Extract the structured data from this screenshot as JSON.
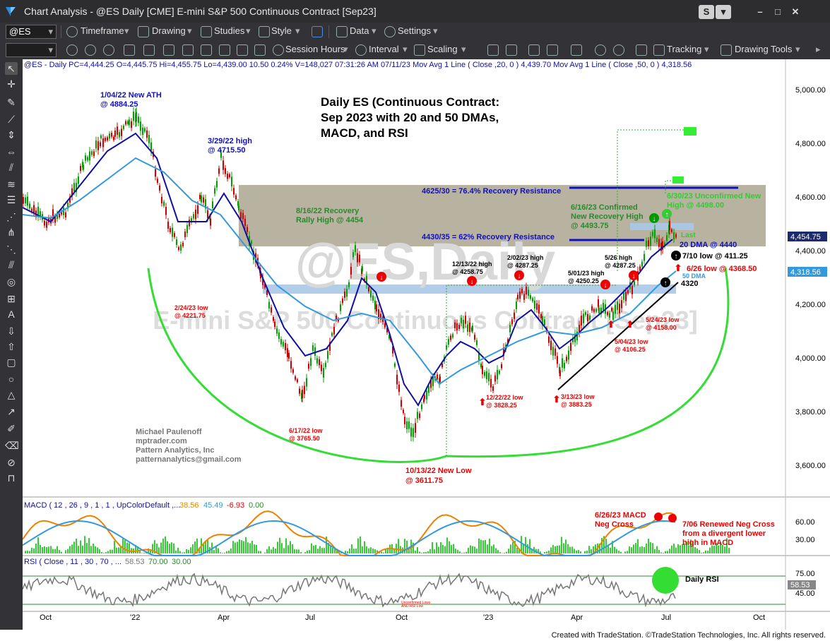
{
  "window": {
    "title": "Chart Analysis - @ES Daily [CME] E-mini S&P 500 Continuous Contract [Sep23]",
    "btn_s": "S",
    "btn_min": "–",
    "btn_max": "□",
    "btn_close": "✕"
  },
  "toolbar1": {
    "symbol": "@ES",
    "timeframe": "Timeframe",
    "drawing": "Drawing",
    "studies": "Studies",
    "style": "Style",
    "data": "Data",
    "settings": "Settings"
  },
  "toolbar2": {
    "session": "Session Hours",
    "interval": "Interval",
    "scaling": "Scaling",
    "tracking": "Tracking",
    "drawing_tools": "Drawing Tools"
  },
  "header_line": "@ES - Daily  PC=4,444.25  O=4,445.75  Hi=4,455.75  Lo=4,439.00  10.50  0.24%  V=148,027  07:31:26 AM  07/11/23  Mov Avg 1 Line (  Close ,20,  0 )   4,439.70  Mov Avg 1 Line (  Close ,50,  0 )   4,318.56",
  "title_lines": [
    "Daily ES (Continuous Contract:",
    "Sep 2023 with 20 and 50 DMAs,",
    "MACD, and RSI"
  ],
  "watermark1": "@ES,Daily",
  "watermark2": "E-mini S&P 500 Continuous Contract [Sep23]",
  "author": [
    "Michael Paulenoff",
    "mptrader.com",
    "Pattern Analytics, Inc",
    "patternanalytics@gmail.com"
  ],
  "annotations": {
    "ath": [
      "1/04/22 New ATH",
      "@ 4884.25"
    ],
    "h0329": [
      "3/29/22 high",
      "@ 4715.50"
    ],
    "l0224": [
      "2/24/23 low",
      "@ 4221.75"
    ],
    "rec0816": [
      "8/16/22 Recovery",
      "Rally High @ 4454"
    ],
    "l0617": [
      "6/17/22 low",
      "@ 3765.50"
    ],
    "l1013": [
      "10/13/22  New Low",
      "@ 3611.75"
    ],
    "h1213": [
      "12/13/22 high",
      "@ 4258.75"
    ],
    "h0202": [
      "2/02/23 high",
      "@ 4287.25"
    ],
    "h0501": [
      "5/01/23 high",
      "@ 4250.25"
    ],
    "h0526": [
      "5/26 high",
      "@ 4287.25"
    ],
    "l1222": [
      "12/22/22 low",
      "@ 3828.25"
    ],
    "l0313": [
      "3/13/23 low",
      "@ 3883.25"
    ],
    "l0504": [
      "5/04/23 low",
      "@ 4106.25"
    ],
    "l0524": [
      "5/24/23 low",
      "@ 4158.00"
    ],
    "res764": "4625/30 = 76.4% Recovery Resistance",
    "res62": "4430/35 = 62% Recovery Resistance",
    "conf0616": [
      "6/16/23 Confirmed",
      "New Recovery High",
      "@ 4493.75"
    ],
    "unconf0630": [
      "6/30/23 Unconfirmed New",
      "High @ 4498.00"
    ],
    "last": "Last",
    "dma20": "20 DMA @ 4440",
    "low0710": "7/10 low @ 411.25",
    "low0626": "6/26 low @ 4368.50",
    "dma50": "50 DMA",
    "p4320": "4320",
    "macd_neg": [
      "6/26/23 MACD",
      "Neg Cross"
    ],
    "macd_renew": [
      "7/06 Renewed Neg Cross",
      "from a divergent lower",
      "high in MACD"
    ],
    "daily_rsi": "Daily RSI",
    "rsi_tiny": [
      "Unconfirmed Lows",
      "AND RSI Low"
    ]
  },
  "price_axis": [
    "5,000.00",
    "4,800.00",
    "4,600.00",
    "4,400.00",
    "4,200.00",
    "4,000.00",
    "3,800.00",
    "3,600.00"
  ],
  "last_price": "4,454.75",
  "ma50_price": "4,318.56",
  "macd_label": "MACD ( 12 , 26 , 9 , 1 , 1 , UpColorDefault ,...",
  "macd_values": [
    "38.56",
    "45.49",
    "-6.93",
    "0.00"
  ],
  "macd_axis": [
    "60.00",
    "30.00"
  ],
  "rsi_label": "RSI (  Close , 11 , 30 , 70 , ...",
  "rsi_values": [
    "58.53",
    "70.00",
    "30.00"
  ],
  "rsi_axis": [
    "75.00",
    "45.00"
  ],
  "rsi_last": "58.53",
  "time_axis": [
    "Oct",
    "'22",
    "Apr",
    "Jul",
    "Oct",
    "'23",
    "Apr",
    "Jul",
    "Oct"
  ],
  "status": "Created with TradeStation. ©TradeStation Technologies, Inc. All rights reserved.",
  "colors": {
    "up": "#00a000",
    "down": "#d00000",
    "ma20": "#1010a0",
    "ma50": "#3399dd",
    "arc": "#33dd33",
    "zone": "#b4ae9c",
    "band": "#a8c8e8"
  }
}
